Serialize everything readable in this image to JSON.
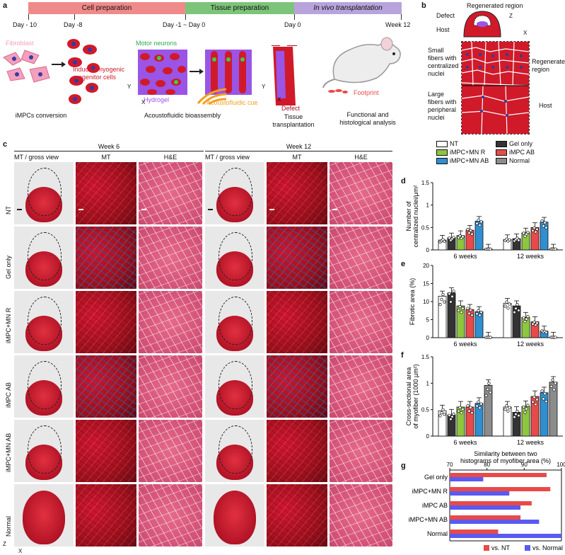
{
  "panel_a": {
    "label": "a",
    "phases": [
      {
        "label": "Cell preparation",
        "color": "#f08a8a"
      },
      {
        "label": "Tissue preparation",
        "color": "#7cc47a"
      },
      {
        "label": "In vivo transplantation",
        "color": "#b8a3dc"
      }
    ],
    "days": [
      "Day - 10",
      "Day -8",
      "Day -1 ~ Day 0",
      "Day 0",
      "Week 12"
    ],
    "fibroblast": "Fibroblast",
    "induced": "Induced myogenic progenitor cells",
    "motor_neurons": "Motor neurons",
    "hydrogel": "Hydrogel",
    "acousto_cue": "Acoustofluidic cue",
    "defect": "Defect",
    "footprint": "Footprint",
    "axis_y": "Y",
    "axis_x": "X",
    "captions": [
      "iMPCs conversion",
      "Acoustofluidic bioassembly",
      "Tissue transplantation",
      "Functional and histological analysis"
    ]
  },
  "panel_b": {
    "label": "b",
    "regenerated_region": "Regenerated region",
    "defect": "Defect",
    "host": "Host",
    "axis_z": "Z",
    "axis_x": "X",
    "small_fibers": "Small fibers with centralized nuclei",
    "large_fibers": "Large fibers with peripheral nuclei",
    "regen_label": "Regenerated region",
    "host_label": "Host"
  },
  "panel_c": {
    "label": "c",
    "week6": "Week 6",
    "week12": "Week 12",
    "col_headers": [
      "MT / gross view",
      "MT",
      "H&E",
      "MT / gross view",
      "MT",
      "H&E"
    ],
    "rows": [
      "NT",
      "Gel only",
      "iMPC+MN R",
      "iMPC AB",
      "iMPC+MN AB",
      "Normal"
    ],
    "axis_z": "Z",
    "axis_x": "X"
  },
  "legend": {
    "items": [
      {
        "name": "NT",
        "color": "#ffffff"
      },
      {
        "name": "Gel only",
        "color": "#333333"
      },
      {
        "name": "iMPC+MN R",
        "color": "#8dc63f"
      },
      {
        "name": "iMPC AB",
        "color": "#e84a4a"
      },
      {
        "name": "iMPC+MN AB",
        "color": "#2f8fd0"
      },
      {
        "name": "Normal",
        "color": "#8c8c8c"
      }
    ]
  },
  "chart_data": [
    {
      "panel": "d",
      "type": "bar",
      "ylabel": "Number of centralized nuclei/μm²",
      "categories": [
        "6 weeks",
        "12 weeks"
      ],
      "ylim": [
        0,
        1.5
      ],
      "yticks": [
        0,
        0.5,
        1.0,
        1.5
      ],
      "series": [
        {
          "name": "NT",
          "values": [
            0.22,
            0.23
          ]
        },
        {
          "name": "Gel only",
          "values": [
            0.27,
            0.25
          ]
        },
        {
          "name": "iMPC+MN R",
          "values": [
            0.32,
            0.38
          ]
        },
        {
          "name": "iMPC AB",
          "values": [
            0.44,
            0.5
          ]
        },
        {
          "name": "iMPC+MN AB",
          "values": [
            0.64,
            0.62
          ]
        },
        {
          "name": "Normal",
          "values": [
            0.02,
            0.02
          ]
        }
      ]
    },
    {
      "panel": "e",
      "type": "bar",
      "ylabel": "Fibrotic area (%)",
      "categories": [
        "6 weeks",
        "12 weeks"
      ],
      "ylim": [
        0,
        20
      ],
      "yticks": [
        0,
        5,
        10,
        15,
        20
      ],
      "series": [
        {
          "name": "NT",
          "values": [
            11.5,
            9.5
          ]
        },
        {
          "name": "Gel only",
          "values": [
            12.4,
            8.8
          ]
        },
        {
          "name": "iMPC+MN R",
          "values": [
            8.8,
            5.6
          ]
        },
        {
          "name": "iMPC AB",
          "values": [
            7.8,
            4.4
          ]
        },
        {
          "name": "iMPC+MN AB",
          "values": [
            7.2,
            1.8
          ]
        },
        {
          "name": "Normal",
          "values": [
            0.1,
            0.1
          ]
        }
      ]
    },
    {
      "panel": "f",
      "type": "bar",
      "ylabel": "Cross-sectional area of myofiber (1000 μm²)",
      "categories": [
        "6 weeks",
        "12 weeks"
      ],
      "ylim": [
        0,
        1.5
      ],
      "yticks": [
        0,
        0.5,
        1.0,
        1.5
      ],
      "series": [
        {
          "name": "NT",
          "values": [
            0.48,
            0.55
          ]
        },
        {
          "name": "Gel only",
          "values": [
            0.4,
            0.45
          ]
        },
        {
          "name": "iMPC+MN R",
          "values": [
            0.55,
            0.56
          ]
        },
        {
          "name": "iMPC AB",
          "values": [
            0.55,
            0.75
          ]
        },
        {
          "name": "iMPC+MN AB",
          "values": [
            0.62,
            0.82
          ]
        },
        {
          "name": "Normal",
          "values": [
            0.96,
            1.02
          ]
        }
      ]
    },
    {
      "panel": "g",
      "type": "bar",
      "orientation": "horizontal",
      "title": "Similarity between two histograms of myofiber area (%)",
      "categories": [
        "Gel only",
        "iMPC+MN R",
        "iMPC AB",
        "iMPC+MN AB",
        "Normal"
      ],
      "xlim": [
        70,
        100
      ],
      "xticks": [
        70,
        80,
        90,
        100
      ],
      "series": [
        {
          "name": "vs. NT",
          "color": "#e84a4a",
          "values": [
            96,
            97,
            92,
            89,
            83
          ]
        },
        {
          "name": "vs. Normal",
          "color": "#5a5af0",
          "values": [
            79,
            86,
            89,
            94,
            100
          ]
        }
      ]
    }
  ]
}
